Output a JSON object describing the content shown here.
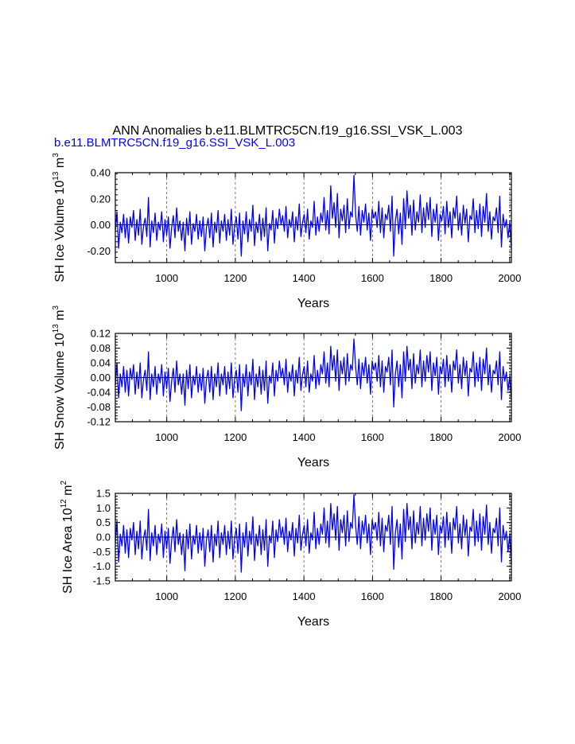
{
  "title": "ANN Anomalies b.e11.BLMTRC5CN.f19_g16.SSI_VSK_L.003",
  "subtitle": "b.e11.BLMTRC5CN.f19_g16.SSI_VSK_L.003",
  "colors": {
    "series": "#0000ff",
    "subtitle": "#0000ff",
    "axes": "#000000",
    "grid": "#555555"
  },
  "chart_data": [
    {
      "type": "line",
      "xlabel": "Years",
      "ylabel_main": "SH Ice Volume 10",
      "ylabel_exp": "13",
      "ylabel_unit": " m",
      "ylabel_unit_exp": "3",
      "xlim": [
        850,
        2005
      ],
      "ylim": [
        -0.29,
        0.4
      ],
      "xticks": [
        1000,
        1200,
        1400,
        1600,
        1800,
        2000
      ],
      "xtick_labels": [
        "1000",
        "1200",
        "1400",
        "1600",
        "1800",
        "2000"
      ],
      "yticks": [
        -0.2,
        0.0,
        0.2,
        0.4
      ],
      "ytick_labels": [
        "-0.20",
        "0.00",
        "0.20",
        "0.40"
      ],
      "grid_x": true,
      "series": [
        {
          "x_start": 850,
          "x_end": 2005,
          "values": [
            -0.05,
            0.1,
            -0.18,
            0.02,
            -0.06,
            0.08,
            -0.1,
            0.05,
            -0.14,
            0.06,
            -0.02,
            0.11,
            -0.12,
            0.04,
            -0.08,
            0.12,
            -0.15,
            -0.01,
            0.05,
            -0.09,
            0.21,
            -0.17,
            0.03,
            -0.06,
            0.09,
            -0.12,
            0.02,
            -0.04,
            0.1,
            -0.13,
            0.04,
            -0.08,
            0.06,
            -0.18,
            -0.02,
            0.07,
            -0.1,
            0.13,
            -0.05,
            0.03,
            -0.12,
            0.02,
            -0.2,
            0.05,
            -0.08,
            0.1,
            -0.15,
            0.01,
            -0.05,
            0.08,
            -0.11,
            0.03,
            -0.09,
            0.06,
            -0.2,
            -0.02,
            0.05,
            -0.1,
            0.09,
            -0.17,
            0.02,
            -0.06,
            0.11,
            -0.14,
            0.03,
            -0.05,
            0.08,
            -0.12,
            0.04,
            -0.08,
            0.12,
            -0.15,
            -0.01,
            0.06,
            -0.11,
            0.09,
            -0.24,
            0.03,
            -0.07,
            0.1,
            -0.13,
            0.04,
            -0.05,
            0.15,
            -0.16,
            0.02,
            -0.06,
            0.08,
            -0.12,
            0.05,
            -0.09,
            0.13,
            -0.2,
            0.01,
            -0.04,
            0.11,
            -0.14,
            0.05,
            -0.03,
            0.12,
            0.0,
            0.07,
            -0.05,
            0.14,
            -0.1,
            0.04,
            -0.02,
            0.1,
            -0.13,
            0.06,
            -0.04,
            0.16,
            -0.09,
            0.02,
            0.08,
            -0.06,
            0.12,
            -0.11,
            0.03,
            -0.02,
            0.18,
            -0.08,
            0.06,
            -0.05,
            0.09,
            0.02,
            0.21,
            -0.04,
            0.11,
            -0.07,
            0.3,
            0.05,
            0.17,
            -0.02,
            0.24,
            -0.1,
            0.12,
            0.03,
            0.15,
            -0.06,
            0.2,
            -0.03,
            0.1,
            0.06,
            0.38,
            0.08,
            -0.05,
            0.14,
            -0.08,
            0.11,
            0.02,
            0.16,
            -0.04,
            0.09,
            -0.12,
            0.12,
            0.05,
            0.1,
            -0.02,
            0.18,
            -0.06,
            0.13,
            -0.1,
            0.08,
            0.04,
            0.15,
            -0.05,
            0.22,
            -0.24,
            0.03,
            0.12,
            -0.07,
            0.09,
            -0.15,
            0.2,
            -0.03,
            0.26,
            0.05,
            0.15,
            -0.08,
            0.19,
            -0.04,
            0.1,
            0.02,
            0.23,
            -0.06,
            0.13,
            -0.02,
            0.17,
            0.04,
            0.21,
            -0.09,
            0.12,
            0.02,
            0.16,
            -0.12,
            0.08,
            0.03,
            0.14,
            -0.07,
            0.18,
            -0.02,
            0.1,
            -0.1,
            0.13,
            0.05,
            0.22,
            -0.04,
            0.09,
            -0.08,
            0.15,
            0.01,
            0.12,
            -0.13,
            0.07,
            0.04,
            0.2,
            -0.06,
            0.11,
            -0.03,
            0.16,
            -0.09,
            0.14,
            0.02,
            0.24,
            -0.05,
            0.1,
            -0.11,
            0.06,
            0.03,
            0.13,
            -0.06,
            0.22,
            -0.17,
            0.08,
            -0.02,
            0.04,
            -0.1,
            0.02,
            -0.19
          ]
        }
      ]
    },
    {
      "type": "line",
      "xlabel": "Years",
      "ylabel_main": "SH Snow Volume 10",
      "ylabel_exp": "13",
      "ylabel_unit": " m",
      "ylabel_unit_exp": "3",
      "xlim": [
        850,
        2005
      ],
      "ylim": [
        -0.12,
        0.12
      ],
      "xticks": [
        1000,
        1200,
        1400,
        1600,
        1800,
        2000
      ],
      "xtick_labels": [
        "1000",
        "1200",
        "1400",
        "1600",
        "1800",
        "2000"
      ],
      "yticks": [
        -0.12,
        -0.08,
        -0.04,
        0.0,
        0.04,
        0.08,
        0.12
      ],
      "ytick_labels": [
        "-0.12",
        "-0.08",
        "-0.04",
        "0.00",
        "0.04",
        "0.08",
        "0.12"
      ],
      "grid_x": true,
      "series": [
        {
          "x_start": 850,
          "x_end": 2005,
          "values": [
            -0.02,
            0.04,
            -0.055,
            0.01,
            -0.025,
            0.03,
            -0.04,
            0.02,
            -0.05,
            0.025,
            -0.005,
            0.035,
            -0.045,
            0.015,
            -0.03,
            0.04,
            -0.055,
            -0.005,
            0.02,
            -0.035,
            0.07,
            -0.06,
            0.01,
            -0.025,
            0.03,
            -0.045,
            0.01,
            -0.015,
            0.035,
            -0.05,
            0.015,
            -0.03,
            0.025,
            -0.065,
            -0.01,
            0.025,
            -0.04,
            0.045,
            -0.02,
            0.01,
            -0.045,
            0.01,
            -0.075,
            0.02,
            -0.03,
            0.035,
            -0.055,
            0.005,
            -0.02,
            0.03,
            -0.04,
            0.01,
            -0.035,
            0.025,
            -0.07,
            -0.005,
            0.02,
            -0.04,
            0.03,
            -0.06,
            0.01,
            -0.025,
            0.04,
            -0.05,
            0.01,
            -0.02,
            0.03,
            -0.045,
            0.015,
            -0.03,
            0.04,
            -0.055,
            -0.005,
            0.02,
            -0.04,
            0.035,
            -0.09,
            0.01,
            -0.025,
            0.035,
            -0.05,
            0.015,
            -0.02,
            0.05,
            -0.06,
            0.01,
            -0.025,
            0.03,
            -0.045,
            0.02,
            -0.035,
            0.045,
            -0.07,
            0.005,
            -0.015,
            0.04,
            -0.05,
            0.02,
            -0.01,
            0.045,
            0.0,
            0.025,
            -0.02,
            0.05,
            -0.04,
            0.015,
            -0.01,
            0.035,
            -0.05,
            0.02,
            -0.015,
            0.055,
            -0.035,
            0.01,
            0.03,
            -0.025,
            0.045,
            -0.04,
            0.01,
            -0.01,
            0.06,
            -0.03,
            0.02,
            -0.02,
            0.035,
            0.01,
            0.07,
            -0.015,
            0.04,
            -0.025,
            0.085,
            0.02,
            0.06,
            -0.01,
            0.075,
            -0.035,
            0.045,
            0.01,
            0.055,
            -0.02,
            0.065,
            -0.01,
            0.035,
            0.02,
            0.105,
            0.03,
            -0.02,
            0.05,
            -0.03,
            0.04,
            0.005,
            0.055,
            -0.015,
            0.035,
            -0.045,
            0.045,
            0.02,
            0.04,
            -0.01,
            0.06,
            -0.025,
            0.045,
            -0.04,
            0.03,
            0.015,
            0.055,
            -0.02,
            0.075,
            -0.08,
            0.01,
            0.045,
            -0.025,
            0.035,
            -0.055,
            0.07,
            -0.01,
            0.085,
            0.02,
            0.05,
            -0.03,
            0.065,
            -0.015,
            0.035,
            0.01,
            0.075,
            -0.025,
            0.045,
            -0.01,
            0.06,
            0.015,
            0.07,
            -0.035,
            0.04,
            0.005,
            0.055,
            -0.045,
            0.03,
            0.01,
            0.05,
            -0.025,
            0.06,
            -0.01,
            0.035,
            -0.04,
            0.045,
            0.02,
            0.075,
            -0.015,
            0.035,
            -0.03,
            0.055,
            0.005,
            0.045,
            -0.05,
            0.025,
            0.015,
            0.07,
            -0.025,
            0.04,
            -0.01,
            0.055,
            -0.035,
            0.05,
            0.01,
            0.08,
            -0.02,
            0.035,
            -0.04,
            0.02,
            0.01,
            0.045,
            -0.02,
            0.07,
            -0.06,
            0.03,
            -0.01,
            0.015,
            -0.035,
            0.005,
            -0.065
          ]
        }
      ]
    },
    {
      "type": "line",
      "xlabel": "Years",
      "ylabel_main": "SH Ice Area 10",
      "ylabel_exp": "12",
      "ylabel_unit": " m",
      "ylabel_unit_exp": "2",
      "xlim": [
        850,
        2005
      ],
      "ylim": [
        -1.5,
        1.5
      ],
      "xticks": [
        1000,
        1200,
        1400,
        1600,
        1800,
        2000
      ],
      "xtick_labels": [
        "1000",
        "1200",
        "1400",
        "1600",
        "1800",
        "2000"
      ],
      "yticks": [
        -1.5,
        -1.0,
        -0.5,
        0.0,
        0.5,
        1.0,
        1.5
      ],
      "ytick_labels": [
        "-1.5",
        "-1.0",
        "-0.5",
        "0.0",
        "0.5",
        "1.0",
        "1.5"
      ],
      "grid_x": true,
      "series": [
        {
          "x_start": 850,
          "x_end": 2005,
          "values": [
            -0.2,
            0.55,
            -0.85,
            0.1,
            -0.3,
            0.4,
            -0.55,
            0.25,
            -0.7,
            0.3,
            -0.1,
            0.5,
            -0.6,
            0.2,
            -0.4,
            0.55,
            -0.75,
            -0.05,
            0.25,
            -0.45,
            0.95,
            -0.8,
            0.15,
            -0.3,
            0.4,
            -0.6,
            0.1,
            -0.2,
            0.45,
            -0.7,
            0.2,
            -0.4,
            0.3,
            -0.9,
            -0.1,
            0.35,
            -0.5,
            0.6,
            -0.25,
            0.15,
            -0.6,
            0.1,
            -1.15,
            0.25,
            -0.4,
            0.45,
            -0.75,
            0.05,
            -0.25,
            0.4,
            -0.55,
            0.15,
            -0.45,
            0.3,
            -1.0,
            -0.1,
            0.25,
            -0.5,
            0.4,
            -0.85,
            0.1,
            -0.3,
            0.55,
            -0.7,
            0.15,
            -0.25,
            0.4,
            -0.6,
            0.2,
            -0.4,
            0.55,
            -0.75,
            -0.05,
            0.3,
            -0.55,
            0.45,
            -1.2,
            0.15,
            -0.35,
            0.5,
            -0.65,
            0.2,
            -0.25,
            0.7,
            -0.8,
            0.1,
            -0.3,
            0.4,
            -0.6,
            0.25,
            -0.45,
            0.6,
            -1.0,
            0.05,
            -0.2,
            0.55,
            -0.7,
            0.25,
            -0.15,
            0.6,
            0.0,
            0.35,
            -0.25,
            0.65,
            -0.5,
            0.2,
            -0.1,
            0.5,
            -0.65,
            0.3,
            -0.2,
            0.75,
            -0.45,
            0.1,
            0.4,
            -0.3,
            0.6,
            -0.55,
            0.15,
            -0.1,
            0.85,
            -0.4,
            0.3,
            -0.25,
            0.45,
            0.1,
            1.0,
            -0.2,
            0.55,
            -0.35,
            1.15,
            0.25,
            0.8,
            -0.1,
            1.05,
            -0.45,
            0.6,
            0.15,
            0.75,
            -0.3,
            0.9,
            -0.15,
            0.5,
            0.3,
            1.45,
            0.4,
            -0.25,
            0.7,
            -0.4,
            0.55,
            0.1,
            0.75,
            -0.2,
            0.45,
            -0.6,
            0.6,
            0.25,
            0.5,
            -0.1,
            0.85,
            -0.3,
            0.65,
            -0.5,
            0.4,
            0.2,
            0.75,
            -0.25,
            1.05,
            -1.1,
            0.15,
            0.6,
            -0.35,
            0.45,
            -0.75,
            0.95,
            -0.15,
            1.15,
            0.25,
            0.7,
            -0.4,
            0.9,
            -0.2,
            0.5,
            0.1,
            1.05,
            -0.3,
            0.65,
            -0.1,
            0.8,
            0.2,
            1.0,
            -0.45,
            0.6,
            0.1,
            0.75,
            -0.6,
            0.4,
            0.15,
            0.7,
            -0.35,
            0.85,
            -0.1,
            0.5,
            -0.55,
            0.65,
            0.25,
            1.05,
            -0.2,
            0.45,
            -0.4,
            0.75,
            0.05,
            0.6,
            -0.65,
            0.35,
            0.2,
            0.95,
            -0.3,
            0.55,
            -0.15,
            0.8,
            -0.45,
            0.7,
            0.1,
            1.1,
            -0.25,
            0.5,
            -0.55,
            0.3,
            0.15,
            0.65,
            -0.3,
            1.0,
            -0.85,
            0.4,
            -0.1,
            0.2,
            -0.5,
            0.1,
            -0.95
          ]
        }
      ]
    }
  ]
}
